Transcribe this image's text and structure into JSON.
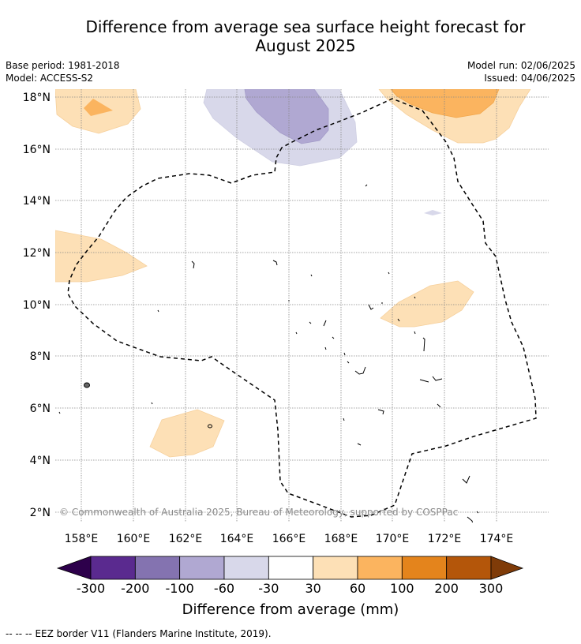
{
  "title": {
    "line1": "Difference from average sea surface height forecast for",
    "line2": "August 2025"
  },
  "meta": {
    "base_period": "Base period: 1981-2018",
    "model": "Model: ACCESS-S2",
    "model_run": "Model run: 02/06/2025",
    "issued": "Issued: 04/06/2025"
  },
  "map": {
    "lat_labels": [
      "18°N",
      "16°N",
      "14°N",
      "12°N",
      "10°N",
      "8°N",
      "6°N",
      "4°N",
      "2°N"
    ],
    "lon_labels": [
      "158°E",
      "160°E",
      "162°E",
      "164°E",
      "166°E",
      "168°E",
      "170°E",
      "172°E",
      "174°E"
    ],
    "copyright": "© Commonwealth of Australia 2025, Bureau of Meteorology, supported by COSPPac"
  },
  "colorbar": {
    "ticks": [
      "-300",
      "-200",
      "-100",
      "-60",
      "-30",
      "30",
      "60",
      "100",
      "200",
      "300"
    ],
    "colors": [
      "#2d004b",
      "#5a2a8f",
      "#8473b0",
      "#b0a8d2",
      "#d8d8ea",
      "#ffffff",
      "#fde0b6",
      "#fbb45f",
      "#e4841c",
      "#b4560a",
      "#7f3b08"
    ],
    "title": "Difference from average (mm)"
  },
  "legend": {
    "eez_marker": "--  --  --",
    "eez_text": "EEZ border V11 (Flanders Marine Institute, 2019)."
  }
}
